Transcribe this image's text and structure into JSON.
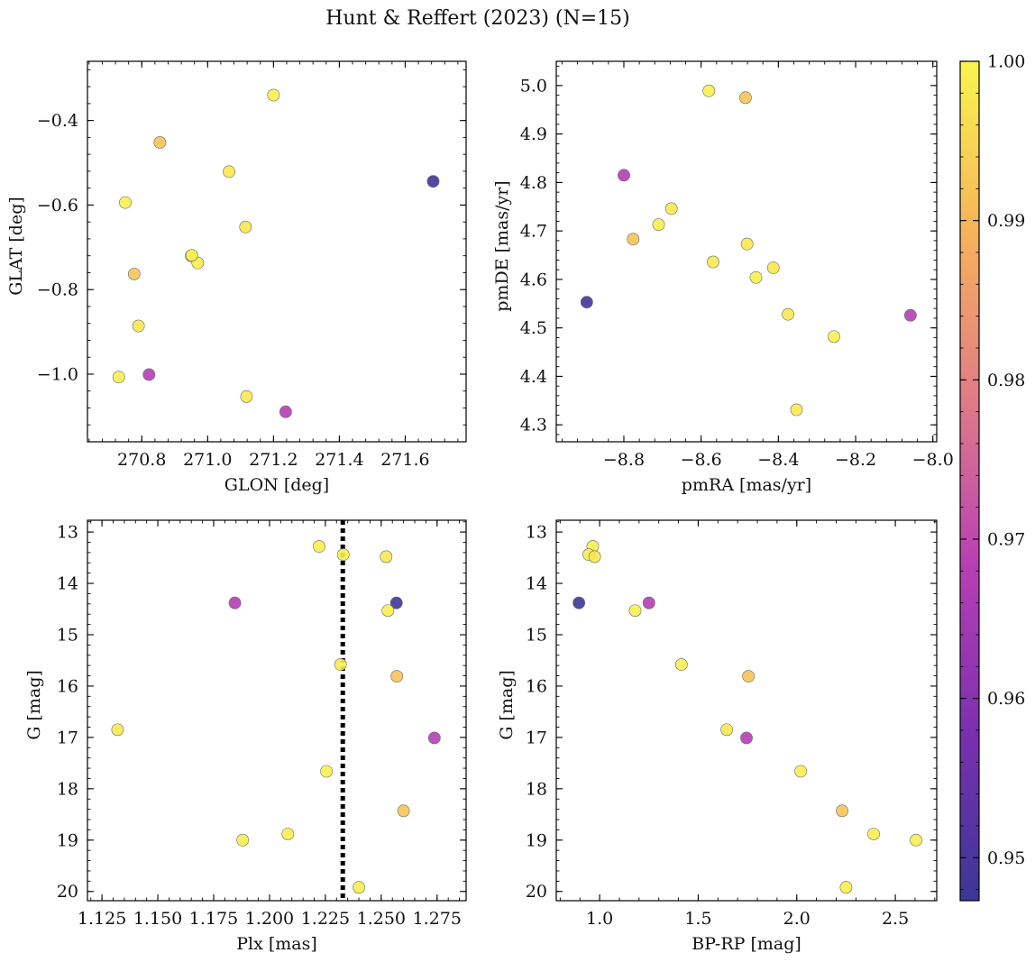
{
  "title": "Hunt & Reffert (2023) (N=15)",
  "colorbar": {
    "min": 0.9473,
    "max": 1.0,
    "ticks": [
      0.95,
      0.96,
      0.97,
      0.98,
      0.99,
      1.0
    ],
    "tick_labels": [
      "0.95",
      "0.96",
      "0.97",
      "0.98",
      "0.99",
      "1.00"
    ],
    "colormap": "plasma",
    "stops": [
      "#3b3796",
      "#7b2fb0",
      "#b83fb5",
      "#e07c86",
      "#f7b35a",
      "#f8f54e"
    ]
  },
  "chart_data": [
    {
      "type": "scatter",
      "id": "glon-glat",
      "xlabel": "GLON [deg]",
      "ylabel": "GLAT [deg]",
      "xlim": [
        270.635,
        271.785
      ],
      "ylim": [
        -1.16,
        -0.26
      ],
      "y_inverted": false,
      "xticks": [
        270.8,
        271.0,
        271.2,
        271.4,
        271.6
      ],
      "xtick_labels": [
        "270.8",
        "271.0",
        "271.2",
        "271.4",
        "271.6"
      ],
      "yticks": [
        -0.4,
        -0.6,
        -0.8,
        -1.0
      ],
      "ytick_labels": [
        "−0.4",
        "−0.6",
        "−0.8",
        "−1.0"
      ],
      "vline": null,
      "points": [
        {
          "x": 271.2,
          "y": -0.34,
          "c": 0.999
        },
        {
          "x": 270.855,
          "y": -0.452,
          "c": 0.992
        },
        {
          "x": 271.065,
          "y": -0.521,
          "c": 0.998
        },
        {
          "x": 271.685,
          "y": -0.544,
          "c": 0.948
        },
        {
          "x": 270.75,
          "y": -0.594,
          "c": 0.999
        },
        {
          "x": 271.115,
          "y": -0.652,
          "c": 0.998
        },
        {
          "x": 270.95,
          "y": -0.72,
          "c": 0.998
        },
        {
          "x": 270.97,
          "y": -0.737,
          "c": 0.999
        },
        {
          "x": 270.777,
          "y": -0.763,
          "c": 0.992
        },
        {
          "x": 270.79,
          "y": -0.886,
          "c": 0.998
        },
        {
          "x": 270.822,
          "y": -1.001,
          "c": 0.968
        },
        {
          "x": 270.73,
          "y": -1.007,
          "c": 0.999
        },
        {
          "x": 271.118,
          "y": -1.053,
          "c": 0.998
        },
        {
          "x": 271.237,
          "y": -1.089,
          "c": 0.968
        },
        {
          "x": 270.952,
          "y": -0.719,
          "c": 0.999
        }
      ]
    },
    {
      "type": "scatter",
      "id": "pmra-pmde",
      "xlabel": "pmRA [mas/yr]",
      "ylabel": "pmDE [mas/yr]",
      "xlim": [
        -8.975,
        -7.99
      ],
      "ylim": [
        4.265,
        5.05
      ],
      "y_inverted": false,
      "xticks": [
        -8.8,
        -8.6,
        -8.4,
        -8.2,
        -8.0
      ],
      "xtick_labels": [
        "−8.8",
        "−8.6",
        "−8.4",
        "−8.2",
        "−8.0"
      ],
      "yticks": [
        4.3,
        4.4,
        4.5,
        4.6,
        4.7,
        4.8,
        4.9,
        5.0
      ],
      "ytick_labels": [
        "4.3",
        "4.4",
        "4.5",
        "4.6",
        "4.7",
        "4.8",
        "4.9",
        "5.0"
      ],
      "vline": null,
      "points": [
        {
          "x": -8.58,
          "y": 4.989,
          "c": 0.999
        },
        {
          "x": -8.485,
          "y": 4.975,
          "c": 0.992
        },
        {
          "x": -8.8,
          "y": 4.815,
          "c": 0.968
        },
        {
          "x": -8.677,
          "y": 4.746,
          "c": 0.998
        },
        {
          "x": -8.71,
          "y": 4.713,
          "c": 0.999
        },
        {
          "x": -8.776,
          "y": 4.683,
          "c": 0.992
        },
        {
          "x": -8.481,
          "y": 4.673,
          "c": 0.998
        },
        {
          "x": -8.569,
          "y": 4.636,
          "c": 0.998
        },
        {
          "x": -8.413,
          "y": 4.624,
          "c": 0.998
        },
        {
          "x": -8.458,
          "y": 4.604,
          "c": 0.999
        },
        {
          "x": -8.896,
          "y": 4.553,
          "c": 0.948
        },
        {
          "x": -8.375,
          "y": 4.528,
          "c": 0.998
        },
        {
          "x": -8.058,
          "y": 4.526,
          "c": 0.968
        },
        {
          "x": -8.256,
          "y": 4.482,
          "c": 0.999
        },
        {
          "x": -8.353,
          "y": 4.331,
          "c": 0.998
        }
      ]
    },
    {
      "type": "scatter",
      "id": "plx-g",
      "xlabel": "Plx [mas]",
      "ylabel": "G [mag]",
      "xlim": [
        1.1185,
        1.288
      ],
      "ylim": [
        12.77,
        20.18
      ],
      "y_inverted": true,
      "xticks": [
        1.125,
        1.15,
        1.175,
        1.2,
        1.225,
        1.25,
        1.275
      ],
      "xtick_labels": [
        "1.125",
        "1.150",
        "1.175",
        "1.200",
        "1.225",
        "1.250",
        "1.275"
      ],
      "yticks": [
        13,
        14,
        15,
        16,
        17,
        18,
        19,
        20
      ],
      "ytick_labels": [
        "13",
        "14",
        "15",
        "16",
        "17",
        "18",
        "19",
        "20"
      ],
      "vline": 1.2328,
      "points": [
        {
          "x": 1.2222,
          "y": 13.28,
          "c": 0.999
        },
        {
          "x": 1.233,
          "y": 13.44,
          "c": 0.999
        },
        {
          "x": 1.2522,
          "y": 13.48,
          "c": 0.998
        },
        {
          "x": 1.1845,
          "y": 14.38,
          "c": 0.968
        },
        {
          "x": 1.2568,
          "y": 14.38,
          "c": 0.948
        },
        {
          "x": 1.253,
          "y": 14.53,
          "c": 0.999
        },
        {
          "x": 1.2318,
          "y": 15.58,
          "c": 0.999
        },
        {
          "x": 1.257,
          "y": 15.81,
          "c": 0.992
        },
        {
          "x": 1.132,
          "y": 16.85,
          "c": 0.998
        },
        {
          "x": 1.2738,
          "y": 17.01,
          "c": 0.968
        },
        {
          "x": 1.2255,
          "y": 17.66,
          "c": 0.999
        },
        {
          "x": 1.26,
          "y": 18.43,
          "c": 0.992
        },
        {
          "x": 1.2082,
          "y": 18.88,
          "c": 0.999
        },
        {
          "x": 1.188,
          "y": 19.0,
          "c": 0.999
        },
        {
          "x": 1.24,
          "y": 19.92,
          "c": 0.999
        }
      ]
    },
    {
      "type": "scatter",
      "id": "bprp-g",
      "xlabel": "BP-RP [mag]",
      "ylabel": "G [mag]",
      "xlim": [
        0.78,
        2.71
      ],
      "ylim": [
        12.77,
        20.18
      ],
      "y_inverted": true,
      "xticks": [
        1.0,
        1.5,
        2.0,
        2.5
      ],
      "xtick_labels": [
        "1.0",
        "1.5",
        "2.0",
        "2.5"
      ],
      "yticks": [
        13,
        14,
        15,
        16,
        17,
        18,
        19,
        20
      ],
      "ytick_labels": [
        "13",
        "14",
        "15",
        "16",
        "17",
        "18",
        "19",
        "20"
      ],
      "vline": null,
      "points": [
        {
          "x": 0.965,
          "y": 13.28,
          "c": 0.999
        },
        {
          "x": 0.945,
          "y": 13.44,
          "c": 0.999
        },
        {
          "x": 0.975,
          "y": 13.48,
          "c": 0.998
        },
        {
          "x": 0.895,
          "y": 14.38,
          "c": 0.948
        },
        {
          "x": 1.25,
          "y": 14.38,
          "c": 0.968
        },
        {
          "x": 1.18,
          "y": 14.53,
          "c": 0.999
        },
        {
          "x": 1.415,
          "y": 15.58,
          "c": 0.999
        },
        {
          "x": 1.755,
          "y": 15.81,
          "c": 0.992
        },
        {
          "x": 1.645,
          "y": 16.85,
          "c": 0.998
        },
        {
          "x": 1.745,
          "y": 17.01,
          "c": 0.968
        },
        {
          "x": 2.02,
          "y": 17.66,
          "c": 0.999
        },
        {
          "x": 2.23,
          "y": 18.43,
          "c": 0.992
        },
        {
          "x": 2.39,
          "y": 18.88,
          "c": 0.999
        },
        {
          "x": 2.605,
          "y": 19.0,
          "c": 0.999
        },
        {
          "x": 2.25,
          "y": 19.92,
          "c": 0.999
        }
      ]
    }
  ]
}
